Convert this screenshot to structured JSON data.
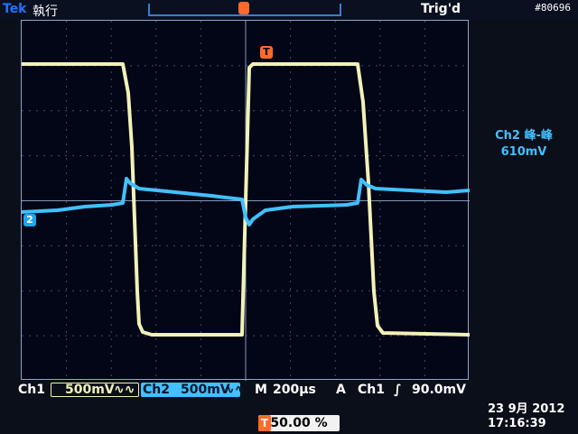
{
  "header": {
    "brand": "Tek",
    "status": "執行",
    "trigger_status": "Trig'd",
    "image_id": "#80696"
  },
  "markers": {
    "trigger": "T",
    "channel2": "2"
  },
  "side_readout": {
    "line1": "Ch2 峰-峰",
    "line2": "610mV"
  },
  "footer": {
    "ch1_label": "Ch1",
    "ch1_value": "500mV",
    "ch1_coupling": "∿∿",
    "ch2_label": "Ch2",
    "ch2_value": "500mV",
    "ch2_coupling": "∿∿",
    "timebase_label": "M",
    "timebase_value": "200µs",
    "trigger_mode": "A",
    "trigger_source": "Ch1",
    "trigger_slope": "∫",
    "trigger_level": "90.0mV",
    "trigger_position_label": "T",
    "trigger_position": "50.00 %",
    "date": "23 9月 2012",
    "time": "17:16:39"
  },
  "colors": {
    "ch1": "#f2f2b8",
    "ch2": "#42c0ff",
    "grid": "#8fa5c8",
    "trigger": "#ff6a2a"
  }
}
